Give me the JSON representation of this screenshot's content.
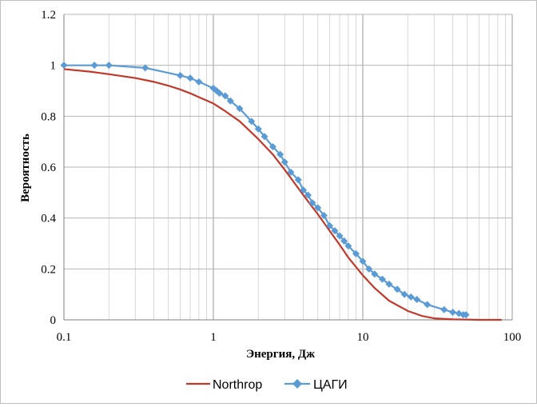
{
  "chart_data": {
    "type": "line",
    "xlabel": "Энергия, Дж",
    "ylabel": "Вероятность",
    "x_scale": "log",
    "xlim": [
      0.1,
      100
    ],
    "ylim": [
      0,
      1.2
    ],
    "x_ticks": [
      "0.1",
      "1",
      "10",
      "100"
    ],
    "y_ticks": [
      "0",
      "0.2",
      "0.4",
      "0.6",
      "0.8",
      "1",
      "1.2"
    ],
    "grid": true,
    "legend_position": "bottom",
    "series": [
      {
        "name": "Northrop",
        "color": "#c0392b",
        "marker": "none",
        "x": [
          0.1,
          0.15,
          0.2,
          0.3,
          0.4,
          0.5,
          0.6,
          0.7,
          0.8,
          1.0,
          1.2,
          1.5,
          2.0,
          2.5,
          3.0,
          4.0,
          5.0,
          6.0,
          7.0,
          8.0,
          10.0,
          12.0,
          15.0,
          20.0,
          25.0,
          30.0,
          40.0,
          50.0,
          60.0,
          85.0
        ],
        "y": [
          0.985,
          0.975,
          0.965,
          0.95,
          0.935,
          0.92,
          0.905,
          0.89,
          0.875,
          0.85,
          0.82,
          0.78,
          0.71,
          0.65,
          0.59,
          0.49,
          0.415,
          0.35,
          0.295,
          0.245,
          0.175,
          0.125,
          0.075,
          0.035,
          0.015,
          0.006,
          0.002,
          0.001,
          0.0,
          0.0
        ]
      },
      {
        "name": "ЦАГИ",
        "color": "#5b9bd5",
        "marker": "diamond",
        "x": [
          0.1,
          0.16,
          0.2,
          0.35,
          0.6,
          0.7,
          0.8,
          1.0,
          1.05,
          1.1,
          1.2,
          1.3,
          1.5,
          1.8,
          2.0,
          2.2,
          2.5,
          2.8,
          3.0,
          3.3,
          3.7,
          4.0,
          4.3,
          4.6,
          5.0,
          5.5,
          6.0,
          6.5,
          7.0,
          7.5,
          8.0,
          9.0,
          10.0,
          11.0,
          12.0,
          13.5,
          15.0,
          17.0,
          19.0,
          21.0,
          23.0,
          27.0,
          35.0,
          40.0,
          44.0,
          47.0,
          49.0
        ],
        "y": [
          1.0,
          1.0,
          1.0,
          0.99,
          0.96,
          0.95,
          0.935,
          0.91,
          0.9,
          0.89,
          0.88,
          0.86,
          0.83,
          0.78,
          0.75,
          0.72,
          0.68,
          0.65,
          0.62,
          0.58,
          0.55,
          0.51,
          0.49,
          0.46,
          0.44,
          0.41,
          0.37,
          0.35,
          0.33,
          0.31,
          0.29,
          0.26,
          0.23,
          0.2,
          0.18,
          0.16,
          0.14,
          0.12,
          0.1,
          0.09,
          0.08,
          0.06,
          0.04,
          0.03,
          0.025,
          0.02,
          0.02
        ]
      }
    ]
  }
}
